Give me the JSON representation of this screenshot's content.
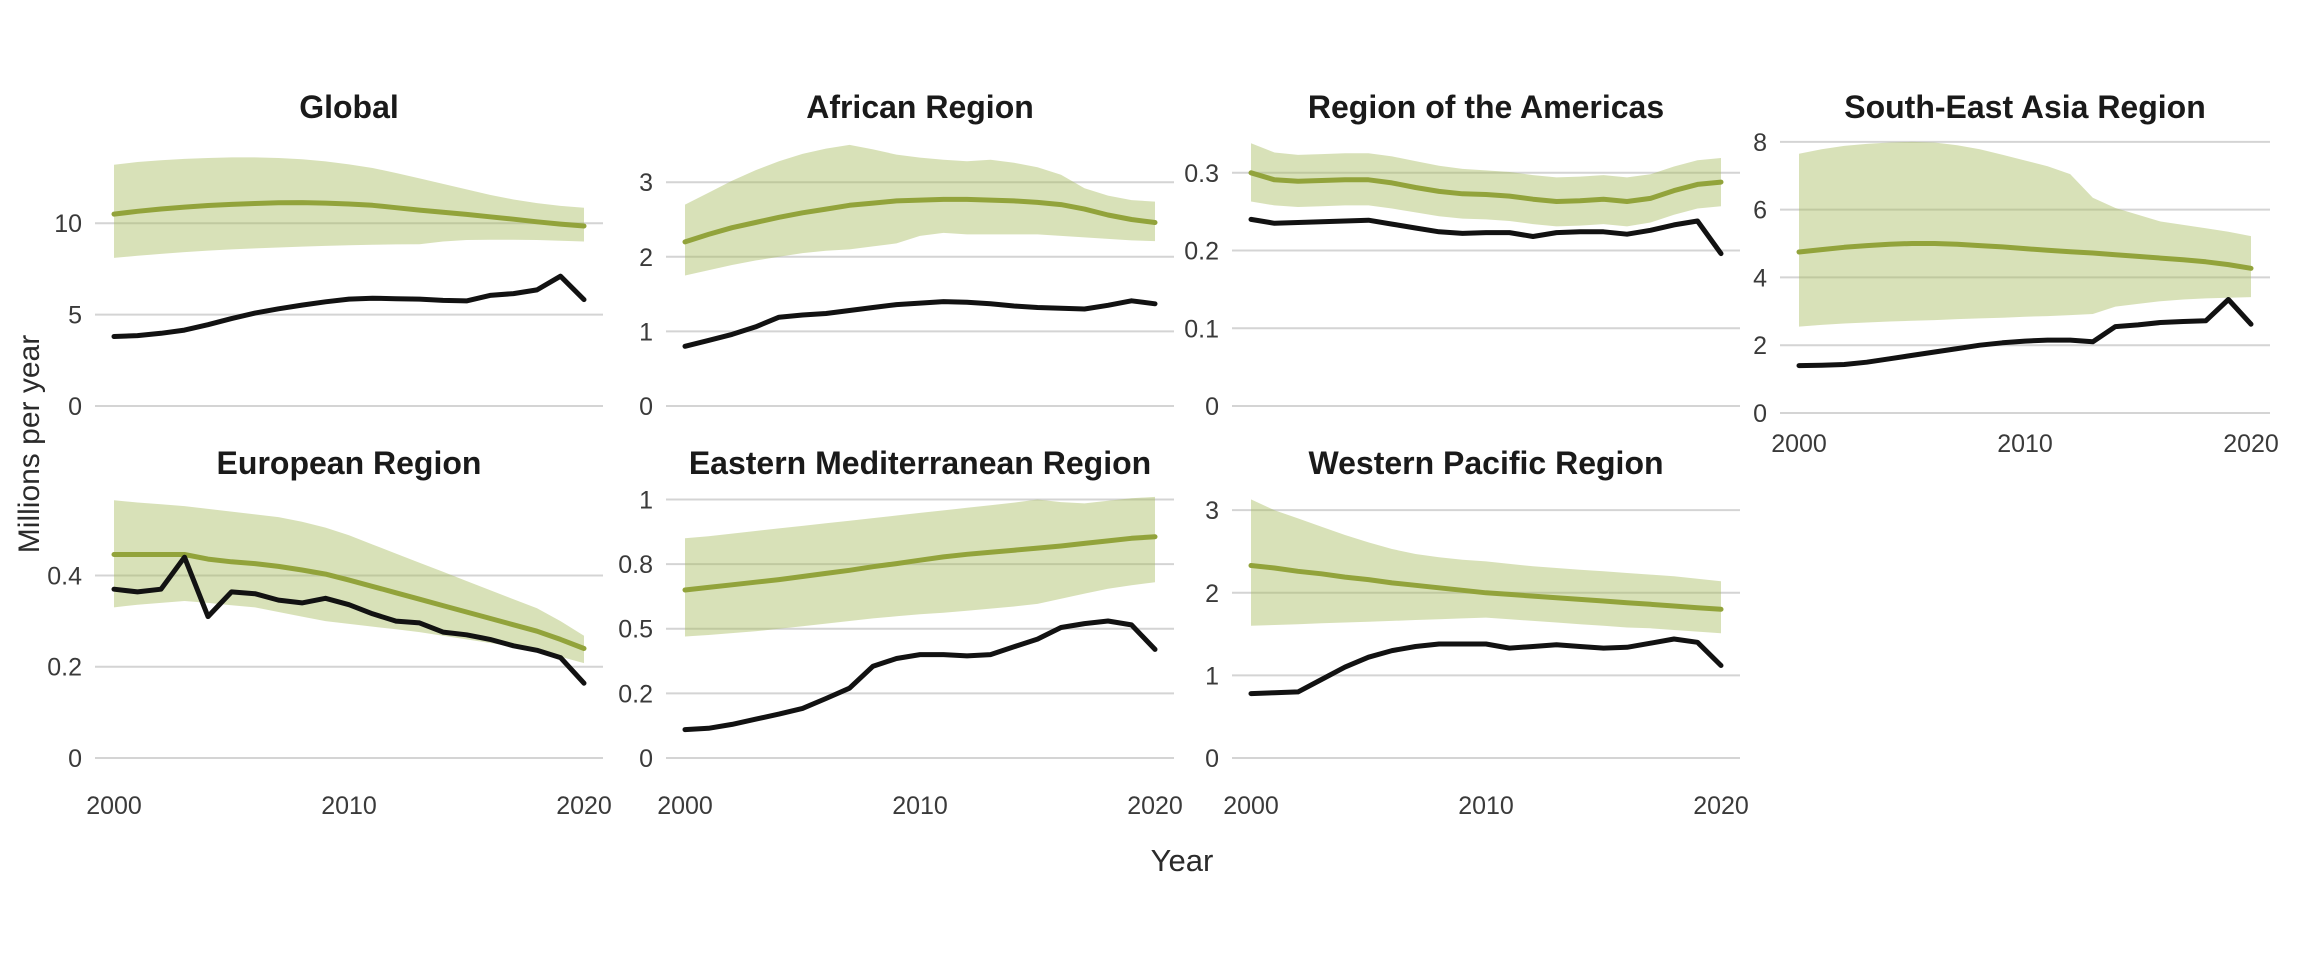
{
  "figure": {
    "y_axis_label": "Millions per year",
    "x_axis_label": "Year",
    "legend": "none",
    "grid": "horizontal-only",
    "colors": {
      "estimate_line": "#92a33b",
      "uncertainty_band": "#a9bd62",
      "band_opacity": 0.45,
      "observed_line": "#121212",
      "gridline": "#d4d4d4",
      "tick_text": "#3a3a3a",
      "title_text": "#1a1a1a",
      "background": "#ffffff"
    }
  },
  "chart_data": [
    {
      "id": "global",
      "type": "line",
      "title": "Global",
      "x": {
        "start": 2000,
        "end": 2020,
        "step": 1
      },
      "xlim": [
        2000,
        2020
      ],
      "ylim": [
        0,
        15.1
      ],
      "y_ticks": [
        {
          "v": 0,
          "label": "0"
        },
        {
          "v": 5,
          "label": "5"
        },
        {
          "v": 10,
          "label": "10"
        }
      ],
      "x_ticks": [
        {
          "v": 2000,
          "label": "2000"
        },
        {
          "v": 2010,
          "label": "2010"
        },
        {
          "v": 2020,
          "label": "2020"
        }
      ],
      "show_x_labels": false,
      "series": [
        {
          "name": "estimated",
          "role": "estimate",
          "values": [
            10.5,
            10.65,
            10.78,
            10.88,
            10.97,
            11.03,
            11.08,
            11.12,
            11.13,
            11.1,
            11.05,
            10.98,
            10.85,
            10.72,
            10.6,
            10.48,
            10.35,
            10.22,
            10.08,
            9.95,
            9.85
          ]
        },
        {
          "name": "observed",
          "role": "observed",
          "values": [
            3.8,
            3.85,
            3.98,
            4.15,
            4.45,
            4.78,
            5.08,
            5.32,
            5.52,
            5.7,
            5.85,
            5.9,
            5.87,
            5.85,
            5.78,
            5.75,
            6.05,
            6.15,
            6.35,
            7.1,
            5.82
          ]
        }
      ],
      "band": {
        "name": "uncertainty-interval",
        "lower": [
          8.1,
          8.22,
          8.32,
          8.42,
          8.5,
          8.57,
          8.62,
          8.67,
          8.72,
          8.76,
          8.8,
          8.82,
          8.84,
          8.85,
          9.0,
          9.08,
          9.1,
          9.1,
          9.08,
          9.04,
          9.0
        ],
        "upper": [
          13.2,
          13.35,
          13.45,
          13.52,
          13.57,
          13.6,
          13.6,
          13.57,
          13.5,
          13.38,
          13.22,
          13.02,
          12.75,
          12.45,
          12.15,
          11.85,
          11.55,
          11.3,
          11.1,
          10.95,
          10.85
        ]
      }
    },
    {
      "id": "african-region",
      "type": "line",
      "title": "African Region",
      "x": {
        "start": 2000,
        "end": 2020,
        "step": 1
      },
      "xlim": [
        2000,
        2020
      ],
      "ylim": [
        0,
        3.7
      ],
      "y_ticks": [
        {
          "v": 0,
          "label": "0"
        },
        {
          "v": 1,
          "label": "1"
        },
        {
          "v": 2,
          "label": "2"
        },
        {
          "v": 3,
          "label": "3"
        }
      ],
      "x_ticks": [
        {
          "v": 2000,
          "label": "2000"
        },
        {
          "v": 2010,
          "label": "2010"
        },
        {
          "v": 2020,
          "label": "2020"
        }
      ],
      "show_x_labels": false,
      "series": [
        {
          "name": "estimated",
          "role": "estimate",
          "values": [
            2.2,
            2.3,
            2.39,
            2.46,
            2.53,
            2.59,
            2.64,
            2.69,
            2.72,
            2.75,
            2.76,
            2.77,
            2.77,
            2.76,
            2.75,
            2.73,
            2.7,
            2.64,
            2.56,
            2.5,
            2.46
          ]
        },
        {
          "name": "observed",
          "role": "observed",
          "values": [
            0.8,
            0.88,
            0.96,
            1.06,
            1.19,
            1.22,
            1.24,
            1.28,
            1.32,
            1.36,
            1.38,
            1.4,
            1.39,
            1.37,
            1.34,
            1.32,
            1.31,
            1.3,
            1.35,
            1.41,
            1.37
          ]
        }
      ],
      "band": {
        "name": "uncertainty-interval",
        "lower": [
          1.75,
          1.82,
          1.89,
          1.95,
          2.0,
          2.05,
          2.08,
          2.1,
          2.14,
          2.18,
          2.28,
          2.32,
          2.3,
          2.3,
          2.3,
          2.3,
          2.28,
          2.26,
          2.24,
          2.22,
          2.21
        ],
        "upper": [
          2.7,
          2.86,
          3.02,
          3.16,
          3.28,
          3.38,
          3.45,
          3.5,
          3.44,
          3.37,
          3.33,
          3.3,
          3.28,
          3.3,
          3.26,
          3.2,
          3.1,
          2.92,
          2.82,
          2.76,
          2.74
        ]
      }
    },
    {
      "id": "region-of-the-americas",
      "type": "line",
      "title": "Region of the Americas",
      "x": {
        "start": 2000,
        "end": 2020,
        "step": 1
      },
      "xlim": [
        2000,
        2020
      ],
      "ylim": [
        0,
        0.355
      ],
      "y_ticks": [
        {
          "v": 0,
          "label": "0"
        },
        {
          "v": 0.1,
          "label": "0.1"
        },
        {
          "v": 0.2,
          "label": "0.2"
        },
        {
          "v": 0.3,
          "label": "0.3"
        }
      ],
      "x_ticks": [
        {
          "v": 2000,
          "label": "2000"
        },
        {
          "v": 2010,
          "label": "2010"
        },
        {
          "v": 2020,
          "label": "2020"
        }
      ],
      "show_x_labels": false,
      "series": [
        {
          "name": "estimated",
          "role": "estimate",
          "values": [
            0.3,
            0.291,
            0.289,
            0.29,
            0.291,
            0.291,
            0.287,
            0.281,
            0.276,
            0.273,
            0.272,
            0.27,
            0.266,
            0.263,
            0.264,
            0.266,
            0.263,
            0.267,
            0.277,
            0.285,
            0.288
          ]
        },
        {
          "name": "observed",
          "role": "observed",
          "values": [
            0.24,
            0.235,
            0.236,
            0.237,
            0.238,
            0.239,
            0.234,
            0.229,
            0.224,
            0.222,
            0.223,
            0.223,
            0.218,
            0.223,
            0.224,
            0.224,
            0.221,
            0.226,
            0.233,
            0.238,
            0.196
          ]
        }
      ],
      "band": {
        "name": "uncertainty-interval",
        "lower": [
          0.263,
          0.258,
          0.256,
          0.257,
          0.258,
          0.258,
          0.254,
          0.249,
          0.244,
          0.241,
          0.24,
          0.238,
          0.234,
          0.231,
          0.232,
          0.234,
          0.231,
          0.236,
          0.246,
          0.254,
          0.257
        ],
        "upper": [
          0.338,
          0.326,
          0.323,
          0.324,
          0.325,
          0.325,
          0.321,
          0.315,
          0.309,
          0.305,
          0.303,
          0.301,
          0.297,
          0.294,
          0.295,
          0.297,
          0.294,
          0.298,
          0.308,
          0.316,
          0.319
        ]
      }
    },
    {
      "id": "south-east-asia-region",
      "type": "line",
      "title": "South-East Asia Region",
      "x": {
        "start": 2000,
        "end": 2020,
        "step": 1
      },
      "xlim": [
        2000,
        2020
      ],
      "ylim": [
        0,
        8.35
      ],
      "y_ticks": [
        {
          "v": 0,
          "label": "0"
        },
        {
          "v": 2,
          "label": "2"
        },
        {
          "v": 4,
          "label": "4"
        },
        {
          "v": 6,
          "label": "6"
        },
        {
          "v": 8,
          "label": "8"
        }
      ],
      "x_ticks": [
        {
          "v": 2000,
          "label": "2000"
        },
        {
          "v": 2010,
          "label": "2010"
        },
        {
          "v": 2020,
          "label": "2020"
        }
      ],
      "show_x_labels": true,
      "series": [
        {
          "name": "estimated",
          "role": "estimate",
          "values": [
            4.75,
            4.82,
            4.89,
            4.94,
            4.98,
            5.0,
            5.0,
            4.98,
            4.94,
            4.9,
            4.85,
            4.8,
            4.76,
            4.72,
            4.67,
            4.62,
            4.57,
            4.52,
            4.46,
            4.38,
            4.27
          ]
        },
        {
          "name": "observed",
          "role": "observed",
          "values": [
            1.4,
            1.41,
            1.43,
            1.5,
            1.6,
            1.7,
            1.8,
            1.9,
            2.0,
            2.07,
            2.12,
            2.15,
            2.15,
            2.1,
            2.55,
            2.6,
            2.67,
            2.7,
            2.72,
            3.35,
            2.62
          ]
        }
      ],
      "band": {
        "name": "uncertainty-interval",
        "lower": [
          2.55,
          2.6,
          2.64,
          2.67,
          2.7,
          2.72,
          2.74,
          2.77,
          2.79,
          2.81,
          2.84,
          2.86,
          2.89,
          2.92,
          3.14,
          3.22,
          3.3,
          3.35,
          3.38,
          3.4,
          3.42
        ],
        "upper": [
          7.65,
          7.78,
          7.88,
          7.94,
          7.98,
          8.0,
          7.98,
          7.9,
          7.78,
          7.62,
          7.45,
          7.28,
          7.05,
          6.35,
          6.05,
          5.85,
          5.65,
          5.55,
          5.45,
          5.35,
          5.22
        ]
      }
    },
    {
      "id": "european-region",
      "type": "line",
      "title": "European Region",
      "x": {
        "start": 2000,
        "end": 2020,
        "step": 1
      },
      "xlim": [
        2000,
        2020
      ],
      "ylim": [
        0,
        0.583
      ],
      "y_ticks": [
        {
          "v": 0,
          "label": "0"
        },
        {
          "v": 0.2,
          "label": "0.2"
        },
        {
          "v": 0.4,
          "label": "0.4"
        }
      ],
      "x_ticks": [
        {
          "v": 2000,
          "label": "2000"
        },
        {
          "v": 2010,
          "label": "2010"
        },
        {
          "v": 2020,
          "label": "2020"
        }
      ],
      "show_x_labels": true,
      "series": [
        {
          "name": "estimated",
          "role": "estimate",
          "values": [
            0.446,
            0.446,
            0.446,
            0.446,
            0.436,
            0.43,
            0.426,
            0.42,
            0.412,
            0.403,
            0.39,
            0.376,
            0.362,
            0.348,
            0.334,
            0.32,
            0.306,
            0.292,
            0.278,
            0.26,
            0.24
          ]
        },
        {
          "name": "observed",
          "role": "observed",
          "values": [
            0.37,
            0.364,
            0.37,
            0.44,
            0.31,
            0.364,
            0.36,
            0.346,
            0.34,
            0.35,
            0.336,
            0.316,
            0.3,
            0.296,
            0.276,
            0.27,
            0.26,
            0.246,
            0.236,
            0.22,
            0.164
          ]
        }
      ],
      "band": {
        "name": "uncertainty-interval",
        "lower": [
          0.33,
          0.336,
          0.34,
          0.344,
          0.34,
          0.335,
          0.33,
          0.32,
          0.31,
          0.3,
          0.294,
          0.288,
          0.282,
          0.276,
          0.268,
          0.26,
          0.252,
          0.244,
          0.234,
          0.222,
          0.208
        ],
        "upper": [
          0.565,
          0.56,
          0.556,
          0.552,
          0.546,
          0.54,
          0.534,
          0.528,
          0.518,
          0.505,
          0.488,
          0.468,
          0.448,
          0.428,
          0.408,
          0.388,
          0.368,
          0.348,
          0.328,
          0.3,
          0.268
        ]
      }
    },
    {
      "id": "eastern-mediterranean-region",
      "type": "line",
      "title": "Eastern Mediterranean Region",
      "x": {
        "start": 2000,
        "end": 2020,
        "step": 1
      },
      "xlim": [
        2000,
        2020
      ],
      "ylim": [
        0,
        1.029
      ],
      "y_ticks": [
        {
          "v": 0,
          "label": "0"
        },
        {
          "v": 0.25,
          "label": "0.2"
        },
        {
          "v": 0.5,
          "label": "0.5"
        },
        {
          "v": 0.75,
          "label": "0.8"
        },
        {
          "v": 1,
          "label": "1"
        }
      ],
      "x_ticks": [
        {
          "v": 2000,
          "label": "2000"
        },
        {
          "v": 2010,
          "label": "2010"
        },
        {
          "v": 2020,
          "label": "2020"
        }
      ],
      "show_x_labels": true,
      "series": [
        {
          "name": "estimated",
          "role": "estimate",
          "values": [
            0.65,
            0.66,
            0.67,
            0.68,
            0.69,
            0.702,
            0.714,
            0.726,
            0.74,
            0.752,
            0.765,
            0.778,
            0.788,
            0.796,
            0.804,
            0.812,
            0.82,
            0.83,
            0.84,
            0.85,
            0.856
          ]
        },
        {
          "name": "observed",
          "role": "observed",
          "values": [
            0.11,
            0.115,
            0.13,
            0.15,
            0.17,
            0.192,
            0.23,
            0.27,
            0.355,
            0.385,
            0.4,
            0.4,
            0.395,
            0.4,
            0.43,
            0.46,
            0.505,
            0.52,
            0.53,
            0.515,
            0.42
          ]
        }
      ],
      "band": {
        "name": "uncertainty-interval",
        "lower": [
          0.47,
          0.476,
          0.483,
          0.49,
          0.5,
          0.51,
          0.52,
          0.53,
          0.54,
          0.548,
          0.556,
          0.562,
          0.57,
          0.578,
          0.586,
          0.596,
          0.616,
          0.636,
          0.655,
          0.668,
          0.68
        ],
        "upper": [
          0.85,
          0.858,
          0.868,
          0.878,
          0.888,
          0.898,
          0.908,
          0.918,
          0.928,
          0.938,
          0.948,
          0.958,
          0.968,
          0.978,
          0.988,
          1.0,
          0.99,
          0.985,
          0.995,
          1.005,
          1.01
        ]
      }
    },
    {
      "id": "western-pacific-region",
      "type": "line",
      "title": "Western Pacific Region",
      "x": {
        "start": 2000,
        "end": 2020,
        "step": 1
      },
      "xlim": [
        2000,
        2020
      ],
      "ylim": [
        0,
        3.22
      ],
      "y_ticks": [
        {
          "v": 0,
          "label": "0"
        },
        {
          "v": 1,
          "label": "1"
        },
        {
          "v": 2,
          "label": "2"
        },
        {
          "v": 3,
          "label": "3"
        }
      ],
      "x_ticks": [
        {
          "v": 2000,
          "label": "2000"
        },
        {
          "v": 2010,
          "label": "2010"
        },
        {
          "v": 2020,
          "label": "2020"
        }
      ],
      "show_x_labels": true,
      "series": [
        {
          "name": "estimated",
          "role": "estimate",
          "values": [
            2.33,
            2.3,
            2.26,
            2.23,
            2.19,
            2.16,
            2.12,
            2.09,
            2.06,
            2.03,
            2.0,
            1.98,
            1.96,
            1.94,
            1.92,
            1.9,
            1.88,
            1.86,
            1.84,
            1.82,
            1.8
          ]
        },
        {
          "name": "observed",
          "role": "observed",
          "values": [
            0.78,
            0.79,
            0.8,
            0.95,
            1.1,
            1.22,
            1.3,
            1.35,
            1.38,
            1.38,
            1.38,
            1.33,
            1.35,
            1.37,
            1.35,
            1.33,
            1.34,
            1.39,
            1.44,
            1.4,
            1.12
          ]
        }
      ],
      "band": {
        "name": "uncertainty-interval",
        "lower": [
          1.6,
          1.61,
          1.62,
          1.63,
          1.64,
          1.65,
          1.66,
          1.67,
          1.68,
          1.69,
          1.7,
          1.68,
          1.66,
          1.64,
          1.62,
          1.6,
          1.58,
          1.57,
          1.55,
          1.53,
          1.51
        ],
        "upper": [
          3.13,
          3.0,
          2.9,
          2.8,
          2.7,
          2.61,
          2.53,
          2.47,
          2.43,
          2.4,
          2.38,
          2.35,
          2.32,
          2.3,
          2.28,
          2.26,
          2.24,
          2.22,
          2.2,
          2.17,
          2.14
        ]
      }
    }
  ]
}
